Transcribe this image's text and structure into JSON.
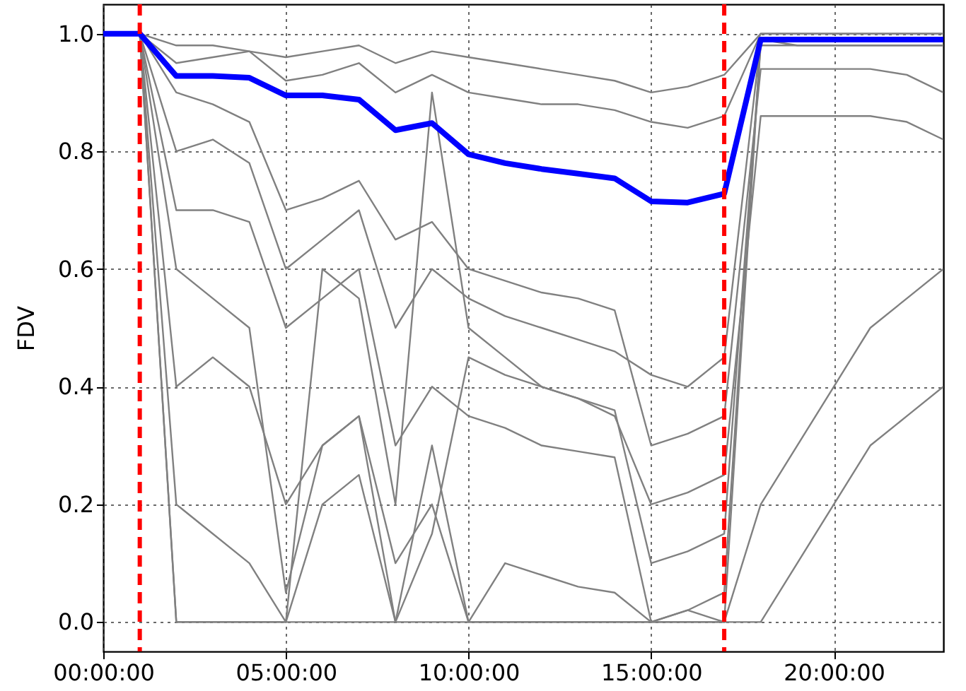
{
  "chart_data": {
    "type": "line",
    "ylabel": "FDV",
    "x": [
      0,
      1,
      2,
      3,
      4,
      5,
      6,
      7,
      8,
      9,
      10,
      11,
      12,
      13,
      14,
      15,
      16,
      17,
      18,
      19,
      20,
      21,
      22,
      23
    ],
    "xlim": [
      0,
      23
    ],
    "xticks": [
      {
        "value": 0,
        "label": "00:00:00"
      },
      {
        "value": 5,
        "label": "05:00:00"
      },
      {
        "value": 10,
        "label": "10:00:00"
      },
      {
        "value": 15,
        "label": "15:00:00"
      },
      {
        "value": 20,
        "label": "20:00:00"
      }
    ],
    "ylim": [
      -0.05,
      1.05
    ],
    "yticks": [
      {
        "value": 0,
        "label": "0.0"
      },
      0.2,
      0.4,
      0.6,
      0.8,
      {
        "value": 1,
        "label": "1.0"
      }
    ],
    "grid": true,
    "legend": false,
    "marker": "none",
    "line_style": "solid",
    "series": [
      {
        "color": "#808080",
        "values": [
          1,
          1,
          0.95,
          0.96,
          0.97,
          0.92,
          0.93,
          0.95,
          0.9,
          0.93,
          0.9,
          0.89,
          0.88,
          0.88,
          0.87,
          0.85,
          0.84,
          0.86,
          1,
          1,
          1,
          1,
          1,
          1
        ]
      },
      {
        "color": "#808080",
        "values": [
          1,
          1,
          0.8,
          0.82,
          0.78,
          0.6,
          0.65,
          0.7,
          0.5,
          0.6,
          0.55,
          0.52,
          0.5,
          0.48,
          0.46,
          0.42,
          0.4,
          0.45,
          0.99,
          0.99,
          0.99,
          0.99,
          0.99,
          0.99
        ]
      },
      {
        "color": "#808080",
        "values": [
          1,
          1,
          0,
          0,
          0,
          0,
          0.2,
          0.25,
          0,
          0.3,
          0,
          0,
          0,
          0,
          0,
          0,
          0,
          0,
          0.99,
          0.99,
          0.99,
          0.99,
          0.99,
          0.99
        ]
      },
      {
        "color": "#808080",
        "values": [
          1,
          1,
          0.6,
          0.55,
          0.5,
          0.05,
          0.3,
          0.35,
          0.1,
          0.2,
          0,
          0.1,
          0.08,
          0.06,
          0.05,
          0,
          0.02,
          0.05,
          0.99,
          0.98,
          0.98,
          0.98,
          0.98,
          0.98
        ]
      },
      {
        "color": "#808080",
        "values": [
          1,
          1,
          0.9,
          0.88,
          0.85,
          0.7,
          0.72,
          0.75,
          0.65,
          0.68,
          0.6,
          0.58,
          0.56,
          0.55,
          0.53,
          0.3,
          0.32,
          0.35,
          0.94,
          0.94,
          0.94,
          0.94,
          0.93,
          0.9
        ]
      },
      {
        "color": "#808080",
        "values": [
          1,
          1,
          0.4,
          0.45,
          0.4,
          0.2,
          0.3,
          0.35,
          0,
          0.15,
          0.45,
          0.42,
          0.4,
          0.38,
          0.36,
          0.1,
          0.12,
          0.15,
          0.98,
          0.98,
          0.98,
          0.98,
          0.98,
          0.98
        ]
      },
      {
        "color": "#808080",
        "values": [
          1,
          1,
          0.7,
          0.7,
          0.68,
          0.5,
          0.55,
          0.6,
          0.3,
          0.4,
          0.35,
          0.33,
          0.3,
          0.29,
          0.28,
          0,
          0.02,
          0,
          0.2,
          0.3,
          0.4,
          0.5,
          0.55,
          0.6
        ]
      },
      {
        "color": "#808080",
        "values": [
          1,
          1,
          0.98,
          0.98,
          0.97,
          0.96,
          0.97,
          0.98,
          0.95,
          0.97,
          0.96,
          0.95,
          0.94,
          0.93,
          0.92,
          0.9,
          0.91,
          0.93,
          1,
          1,
          1,
          1,
          1,
          1
        ]
      },
      {
        "color": "#808080",
        "values": [
          1,
          1,
          0.2,
          0.15,
          0.1,
          0,
          0.6,
          0.55,
          0.2,
          0.9,
          0.5,
          0.45,
          0.4,
          0.38,
          0.35,
          0.2,
          0.22,
          0.25,
          0.86,
          0.86,
          0.86,
          0.86,
          0.85,
          0.82
        ]
      },
      {
        "color": "#808080",
        "values": [
          1,
          1,
          0,
          0,
          0,
          0,
          0,
          0,
          0,
          0,
          0,
          0,
          0,
          0,
          0,
          0,
          0,
          0,
          0,
          0.1,
          0.2,
          0.3,
          0.35,
          0.4
        ]
      },
      {
        "color": "#0000ff",
        "values": [
          1,
          1,
          0.928,
          0.928,
          0.925,
          0.895,
          0.895,
          0.888,
          0.836,
          0.848,
          0.795,
          0.78,
          0.77,
          0.762,
          0.754,
          0.715,
          0.713,
          0.728,
          0.99,
          0.99,
          0.99,
          0.99,
          0.99,
          0.99
        ]
      }
    ],
    "ref_lines": [
      {
        "axis": "x",
        "value": 1,
        "color": "#ff0000",
        "line_style": "dashed"
      },
      {
        "axis": "x",
        "value": 17,
        "color": "#ff0000",
        "line_style": "dashed"
      }
    ]
  }
}
